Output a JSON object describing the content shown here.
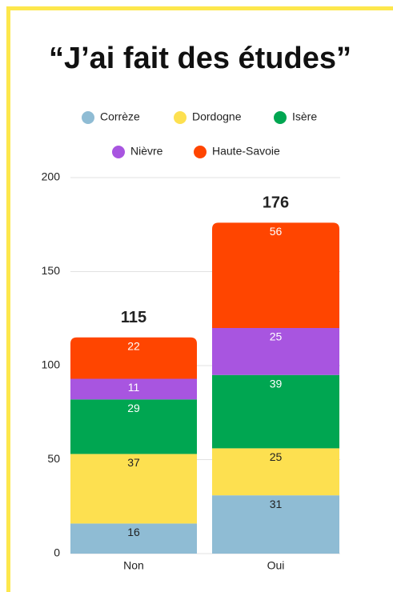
{
  "chart_data": {
    "type": "stacked_bar",
    "title": "“J’ai fait des études”",
    "categories": [
      "Non",
      "Oui"
    ],
    "series": [
      {
        "name": "Corrèze",
        "color": "#8fbcd4",
        "values": [
          16,
          31
        ]
      },
      {
        "name": "Dordogne",
        "color": "#fde050",
        "values": [
          37,
          25
        ]
      },
      {
        "name": "Isère",
        "color": "#00a651",
        "values": [
          29,
          39
        ]
      },
      {
        "name": "Nièvre",
        "color": "#a855e0",
        "values": [
          11,
          25
        ]
      },
      {
        "name": "Haute-Savoie",
        "color": "#ff4500",
        "values": [
          22,
          56
        ]
      }
    ],
    "totals": [
      115,
      176
    ],
    "ylim": [
      0,
      200
    ],
    "yticks": [
      0,
      50,
      100,
      150,
      200
    ],
    "grid": true
  }
}
